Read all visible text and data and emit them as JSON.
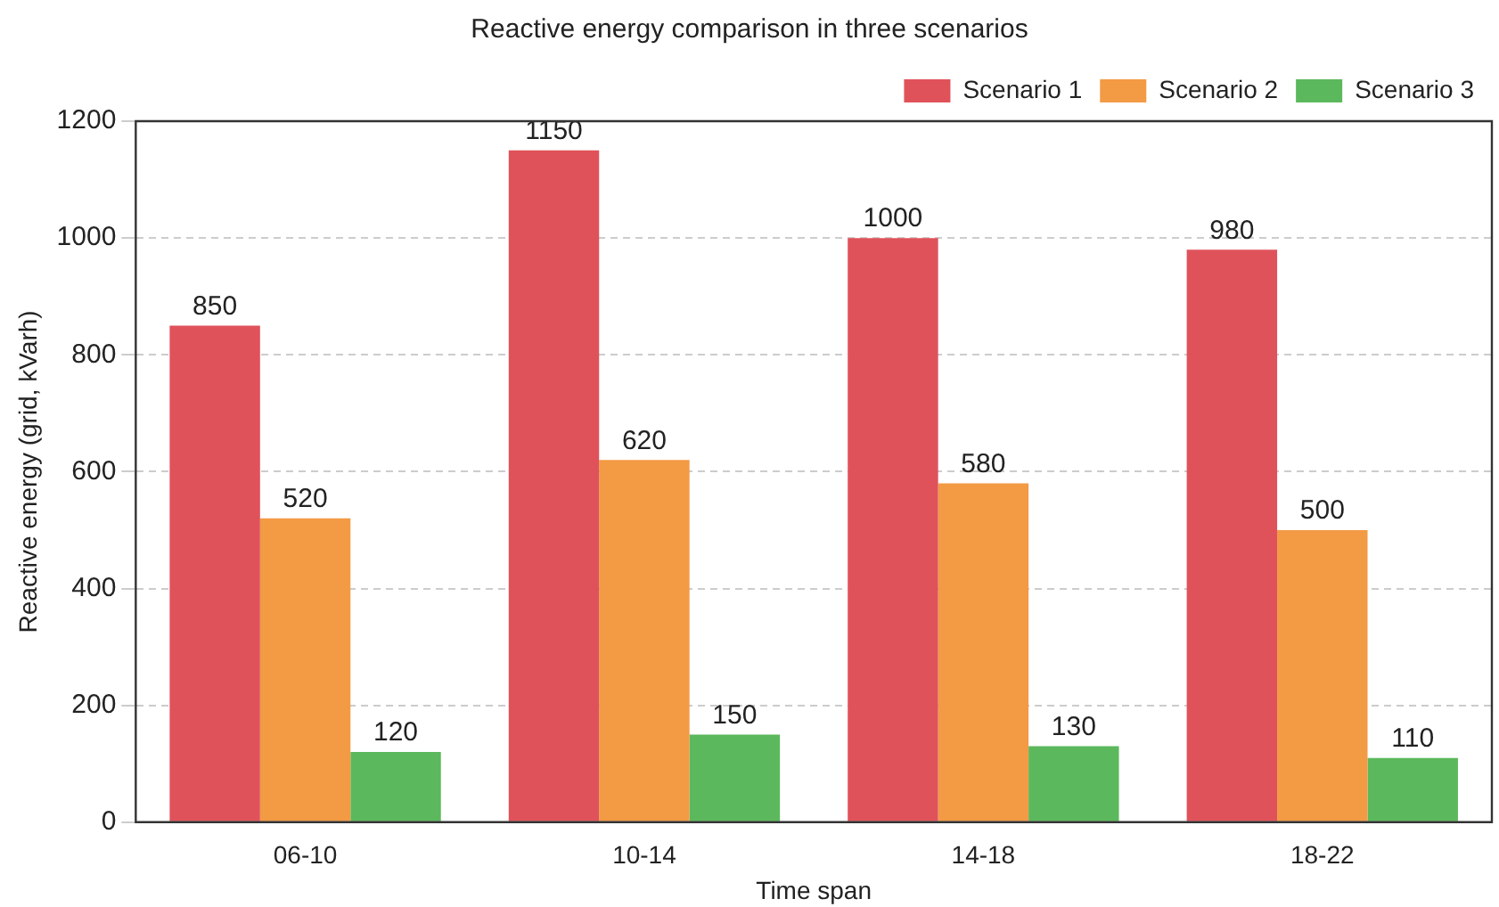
{
  "chart_data": {
    "type": "bar",
    "title": "Reactive energy comparison in three scenarios",
    "xlabel": "Time span",
    "ylabel": "Reactive energy (grid, kVarh)",
    "categories": [
      "06-10",
      "10-14",
      "14-18",
      "18-22"
    ],
    "series": [
      {
        "name": "Scenario 1",
        "color": "#e0525a",
        "values": [
          850,
          1150,
          1000,
          980
        ]
      },
      {
        "name": "Scenario 2",
        "color": "#f39a45",
        "values": [
          520,
          620,
          580,
          500
        ]
      },
      {
        "name": "Scenario 3",
        "color": "#5cb85c",
        "values": [
          120,
          150,
          130,
          110
        ]
      }
    ],
    "ylim": [
      0,
      1200
    ],
    "yticks": [
      0,
      200,
      400,
      600,
      800,
      1000,
      1200
    ],
    "grid": "y",
    "legend": "top right",
    "data_labels": true
  }
}
